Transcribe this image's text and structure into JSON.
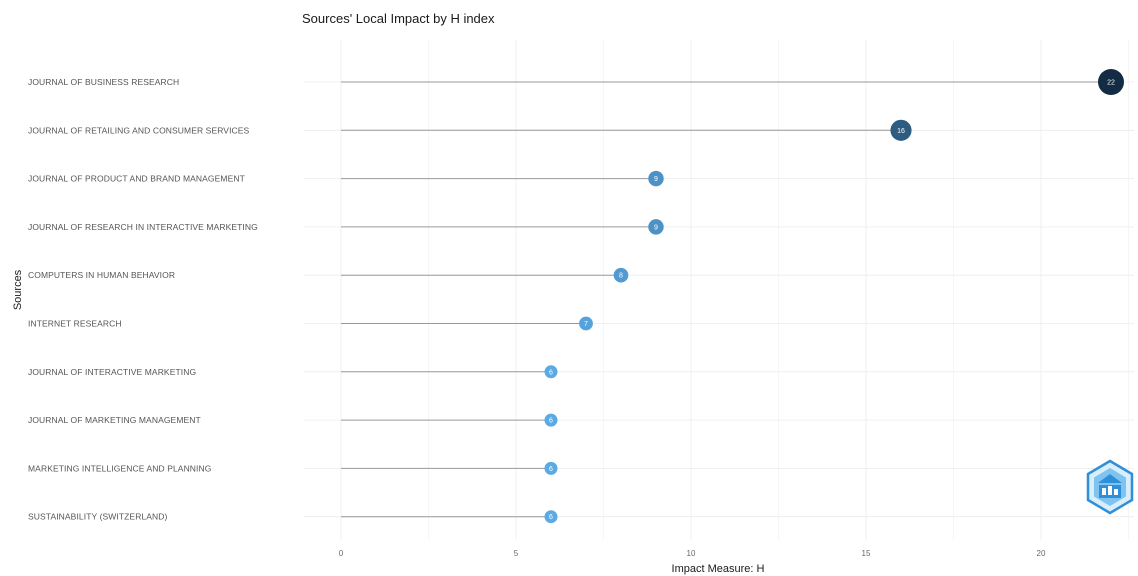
{
  "chart_data": {
    "type": "lollipop",
    "title": "Sources' Local Impact by H index",
    "xlabel": "Impact Measure: H",
    "ylabel": "Sources",
    "xlim": [
      0,
      22.5
    ],
    "xticks": [
      0,
      5,
      10,
      15,
      20
    ],
    "grid": true,
    "legend": "none",
    "categories": [
      "JOURNAL OF BUSINESS RESEARCH",
      "JOURNAL OF RETAILING AND CONSUMER SERVICES",
      "JOURNAL OF PRODUCT AND BRAND MANAGEMENT",
      "JOURNAL OF RESEARCH IN INTERACTIVE MARKETING",
      "COMPUTERS IN HUMAN BEHAVIOR",
      "INTERNET RESEARCH",
      "JOURNAL OF INTERACTIVE MARKETING",
      "JOURNAL OF MARKETING MANAGEMENT",
      "MARKETING INTELLIGENCE AND PLANNING",
      "SUSTAINABILITY (SWITZERLAND)"
    ],
    "values": [
      22,
      16,
      9,
      9,
      8,
      7,
      6,
      6,
      6,
      6
    ],
    "color_scale": {
      "low": "#5aaae6",
      "high": "#132b43"
    }
  },
  "watermark": {
    "icon": "bibliometrix-logo-icon",
    "colors": [
      "#2f8fd8",
      "#7fc4f0"
    ]
  }
}
